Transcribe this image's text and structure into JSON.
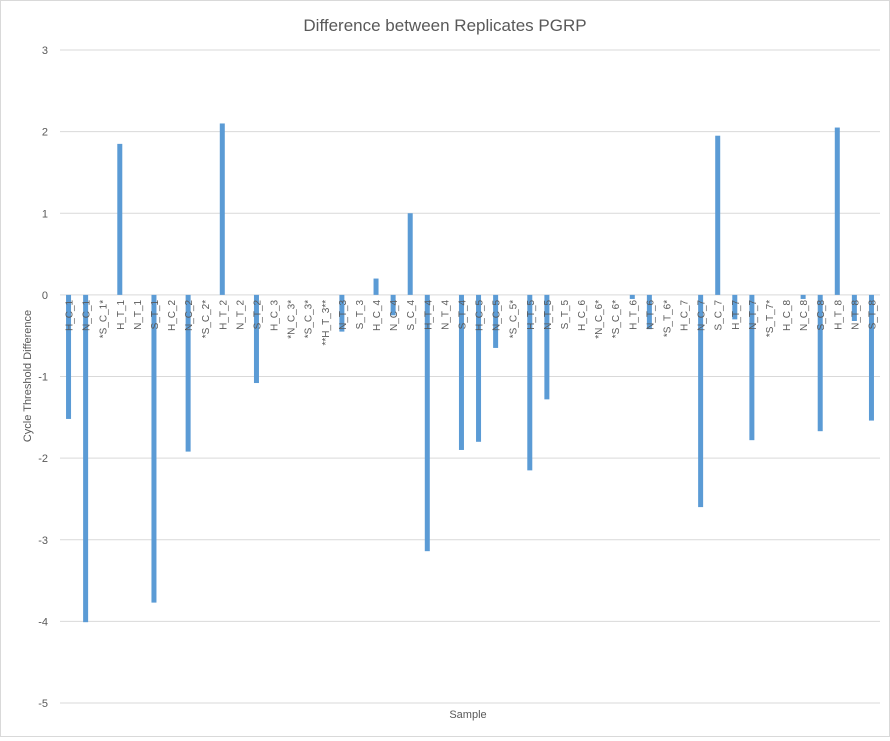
{
  "chart_data": {
    "type": "bar",
    "title": "Difference between Replicates PGRP",
    "xlabel": "Sample",
    "ylabel": "Cycle Threshold Difference",
    "ylim": [
      -5,
      3
    ],
    "yticks": [
      3,
      2,
      1,
      0,
      -1,
      -2,
      -3,
      -4,
      -5
    ],
    "grid": true,
    "legend": "none",
    "bar_color": "#5b9bd5",
    "categories": [
      "H_C_1",
      "N_C_1",
      "*S_C_1*",
      "H_T_1",
      "N_T_1",
      "S_T_1",
      "H_C_2",
      "N_C_2",
      "*S_C_2*",
      "H_T_2",
      "N_T_2",
      "S_T_2",
      "H_C_3",
      "*N_C_3*",
      "*S_C_3*",
      "**H_T_3**",
      "N_T_3",
      "S_T_3",
      "H_C_4",
      "N_C_4",
      "S_C_4",
      "H_T_4",
      "N_T_4",
      "S_T_4",
      "H_C_5",
      "N_C_5",
      "*S_C_5*",
      "H_T_5",
      "N_T_5",
      "S_T_5",
      "H_C_6",
      "*N_C_6*",
      "*S_C_6*",
      "H_T_6",
      "N_T_6",
      "*S_T_6*",
      "H_C_7",
      "N_C_7",
      "S_C_7",
      "H_T_7",
      "N_T_7",
      "*S_T_7*",
      "H_C_8",
      "N_C_8",
      "S_C_8",
      "H_T_8",
      "N_T_8",
      "S_T_8"
    ],
    "values": [
      -1.52,
      -4.01,
      0,
      1.85,
      0,
      -3.77,
      0,
      -1.92,
      0,
      2.1,
      0,
      -1.08,
      0,
      0,
      0,
      0,
      -0.45,
      0,
      0.2,
      -0.25,
      1.0,
      -3.14,
      0,
      -1.9,
      -1.8,
      -0.65,
      0,
      -2.15,
      -1.28,
      0,
      0,
      0,
      0,
      -0.05,
      -0.42,
      0,
      0,
      -2.6,
      1.95,
      -0.3,
      -1.78,
      0,
      0,
      -0.05,
      -1.67,
      2.05,
      -0.32,
      -1.54
    ]
  }
}
